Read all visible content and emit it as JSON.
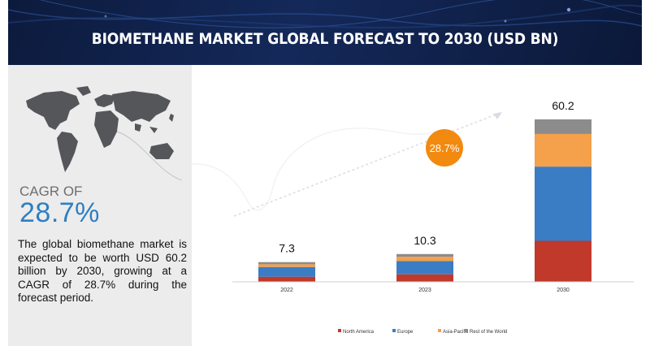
{
  "title": "BIOMETHANE MARKET GLOBAL FORECAST TO 2030 (USD BN)",
  "cagr": {
    "label": "CAGR OF",
    "value": "28.7%",
    "description": "The global biomethane market is expected to be worth USD 60.2 billion by 2030, growing at a CAGR of 28.7% during the forecast period."
  },
  "colors": {
    "header": "#0f2250",
    "cagr_value": "#2f7fc1",
    "growth_badge": "#f28a10"
  },
  "chart_data": {
    "type": "bar",
    "stacked": true,
    "categories": [
      "2022",
      "2023",
      "2030"
    ],
    "totals": [
      "7.3",
      "10.3",
      "60.2"
    ],
    "series": [
      {
        "name": "North America",
        "color": "#c0392b",
        "values": [
          1.9,
          2.8,
          15.2
        ]
      },
      {
        "name": "Europe",
        "color": "#3a7dc4",
        "values": [
          3.6,
          4.9,
          27.5
        ]
      },
      {
        "name": "Asia-Pacific",
        "color": "#f5a04a",
        "values": [
          1.0,
          1.6,
          12.1
        ]
      },
      {
        "name": "Rest of the World",
        "color": "#8c8c8c",
        "values": [
          0.8,
          1.0,
          5.4
        ]
      }
    ],
    "ylim": [
      0,
      60.2
    ],
    "growth_label": "28.7%",
    "legend_position": "bottom"
  }
}
